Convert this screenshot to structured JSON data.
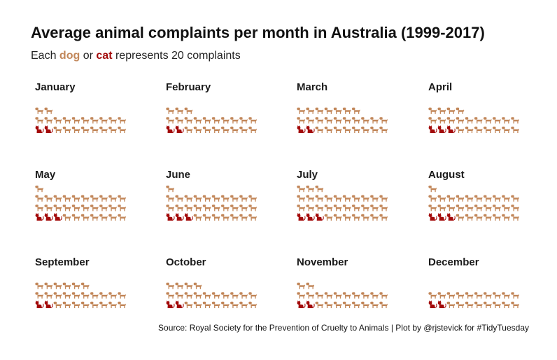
{
  "title": "Average animal complaints per month in Australia (1999-2017)",
  "subtitle": {
    "prefix": "Each",
    "dog_word": "dog",
    "or_word": "or",
    "cat_word": "cat",
    "suffix": "represents 20 complaints"
  },
  "caption": "Source: Royal Society for the Prevention of Cruelty to Animals | Plot by @rjstevick for #TidyTuesday",
  "colors": {
    "dog": "#c2875a",
    "cat": "#a30a0a",
    "text": "#111111"
  },
  "icons": {
    "dog": "dog-icon",
    "cat": "cat-icon"
  },
  "chart_data": {
    "type": "pictograph",
    "unit": 20,
    "unit_label": "complaints",
    "icons_per_row": 10,
    "series": [
      {
        "name": "dog",
        "color": "#c2875a"
      },
      {
        "name": "cat",
        "color": "#a30a0a"
      }
    ],
    "months": [
      {
        "month": "January",
        "cats": 2,
        "dogs": 20
      },
      {
        "month": "February",
        "cats": 2,
        "dogs": 21
      },
      {
        "month": "March",
        "cats": 2,
        "dogs": 25
      },
      {
        "month": "April",
        "cats": 3,
        "dogs": 21
      },
      {
        "month": "May",
        "cats": 3,
        "dogs": 28
      },
      {
        "month": "June",
        "cats": 3,
        "dogs": 28
      },
      {
        "month": "July",
        "cats": 3,
        "dogs": 30
      },
      {
        "month": "August",
        "cats": 3,
        "dogs": 28
      },
      {
        "month": "September",
        "cats": 2,
        "dogs": 24
      },
      {
        "month": "October",
        "cats": 2,
        "dogs": 22
      },
      {
        "month": "November",
        "cats": 2,
        "dogs": 20
      },
      {
        "month": "December",
        "cats": 2,
        "dogs": 18
      }
    ]
  }
}
